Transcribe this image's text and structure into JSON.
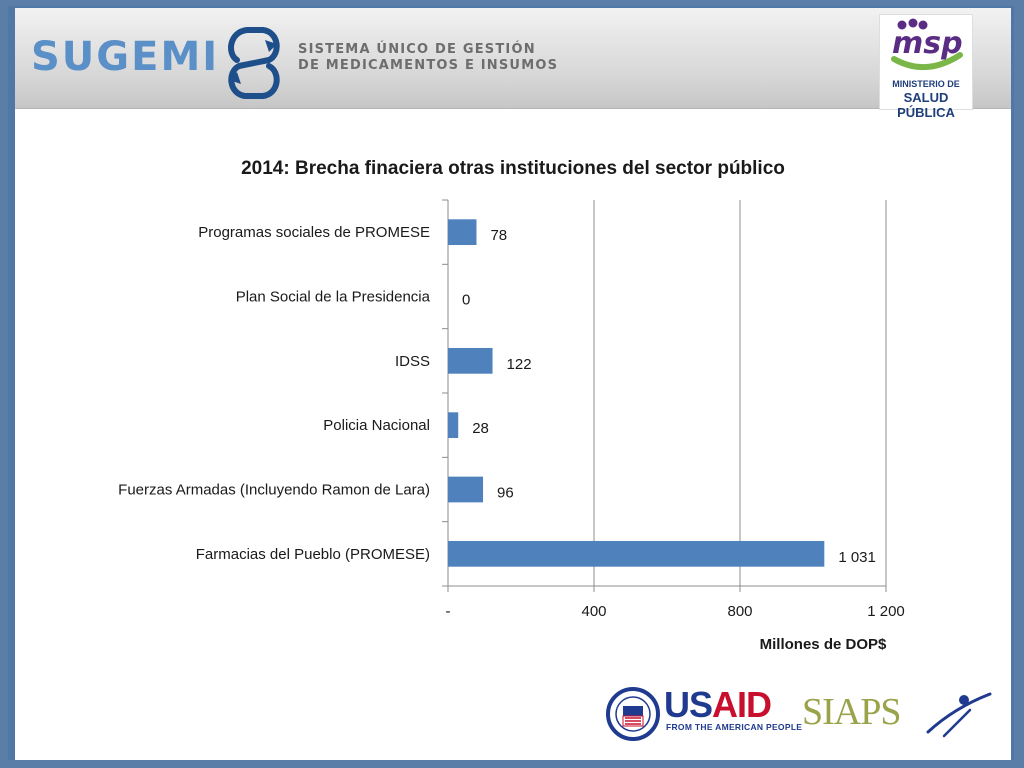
{
  "header": {
    "brand": "SUGEMI",
    "tagline_line1": "SISTEMA ÚNICO DE GESTIÓN",
    "tagline_line2": "DE MEDICAMENTOS E INSUMOS",
    "ministry_logo": {
      "mark": "msp",
      "line1": "MINISTERIO DE",
      "line2": "SALUD PÚBLICA"
    }
  },
  "chart_data": {
    "type": "bar",
    "orientation": "horizontal",
    "title": "2014: Brecha finaciera otras instituciones del sector público",
    "xlabel": "Millones de DOP$",
    "ylabel": "",
    "xlim": [
      0,
      1200
    ],
    "x_ticks": [
      0,
      400,
      800,
      1200
    ],
    "x_tick_labels": [
      "-",
      "400",
      "800",
      "1 200"
    ],
    "grid": "vertical",
    "bar_color": "#4f81bd",
    "categories": [
      "Programas sociales de PROMESE",
      "Plan Social de la Presidencia",
      "IDSS",
      "Policia Nacional",
      "Fuerzas Armadas (Incluyendo Ramon de Lara)",
      "Farmacias del Pueblo (PROMESE)"
    ],
    "values": [
      78,
      0,
      122,
      28,
      96,
      1031
    ],
    "value_labels": [
      "78",
      "0",
      "122",
      "28",
      "96",
      "1 031"
    ]
  },
  "footer": {
    "usaid_part1": "US",
    "usaid_part2": "AID",
    "usaid_tagline": "FROM THE AMERICAN PEOPLE",
    "siaps": "SIAPS"
  },
  "colors": {
    "frame": "#4f78a6",
    "sugemi_blue": "#5b8fc7",
    "sugemi_dark": "#1f4f8a",
    "msp_purple": "#5b2c83",
    "msp_green": "#7ab648",
    "usaid_blue": "#1f3a8f",
    "usaid_red": "#c8102e",
    "siaps_olive": "#9aa24a"
  }
}
